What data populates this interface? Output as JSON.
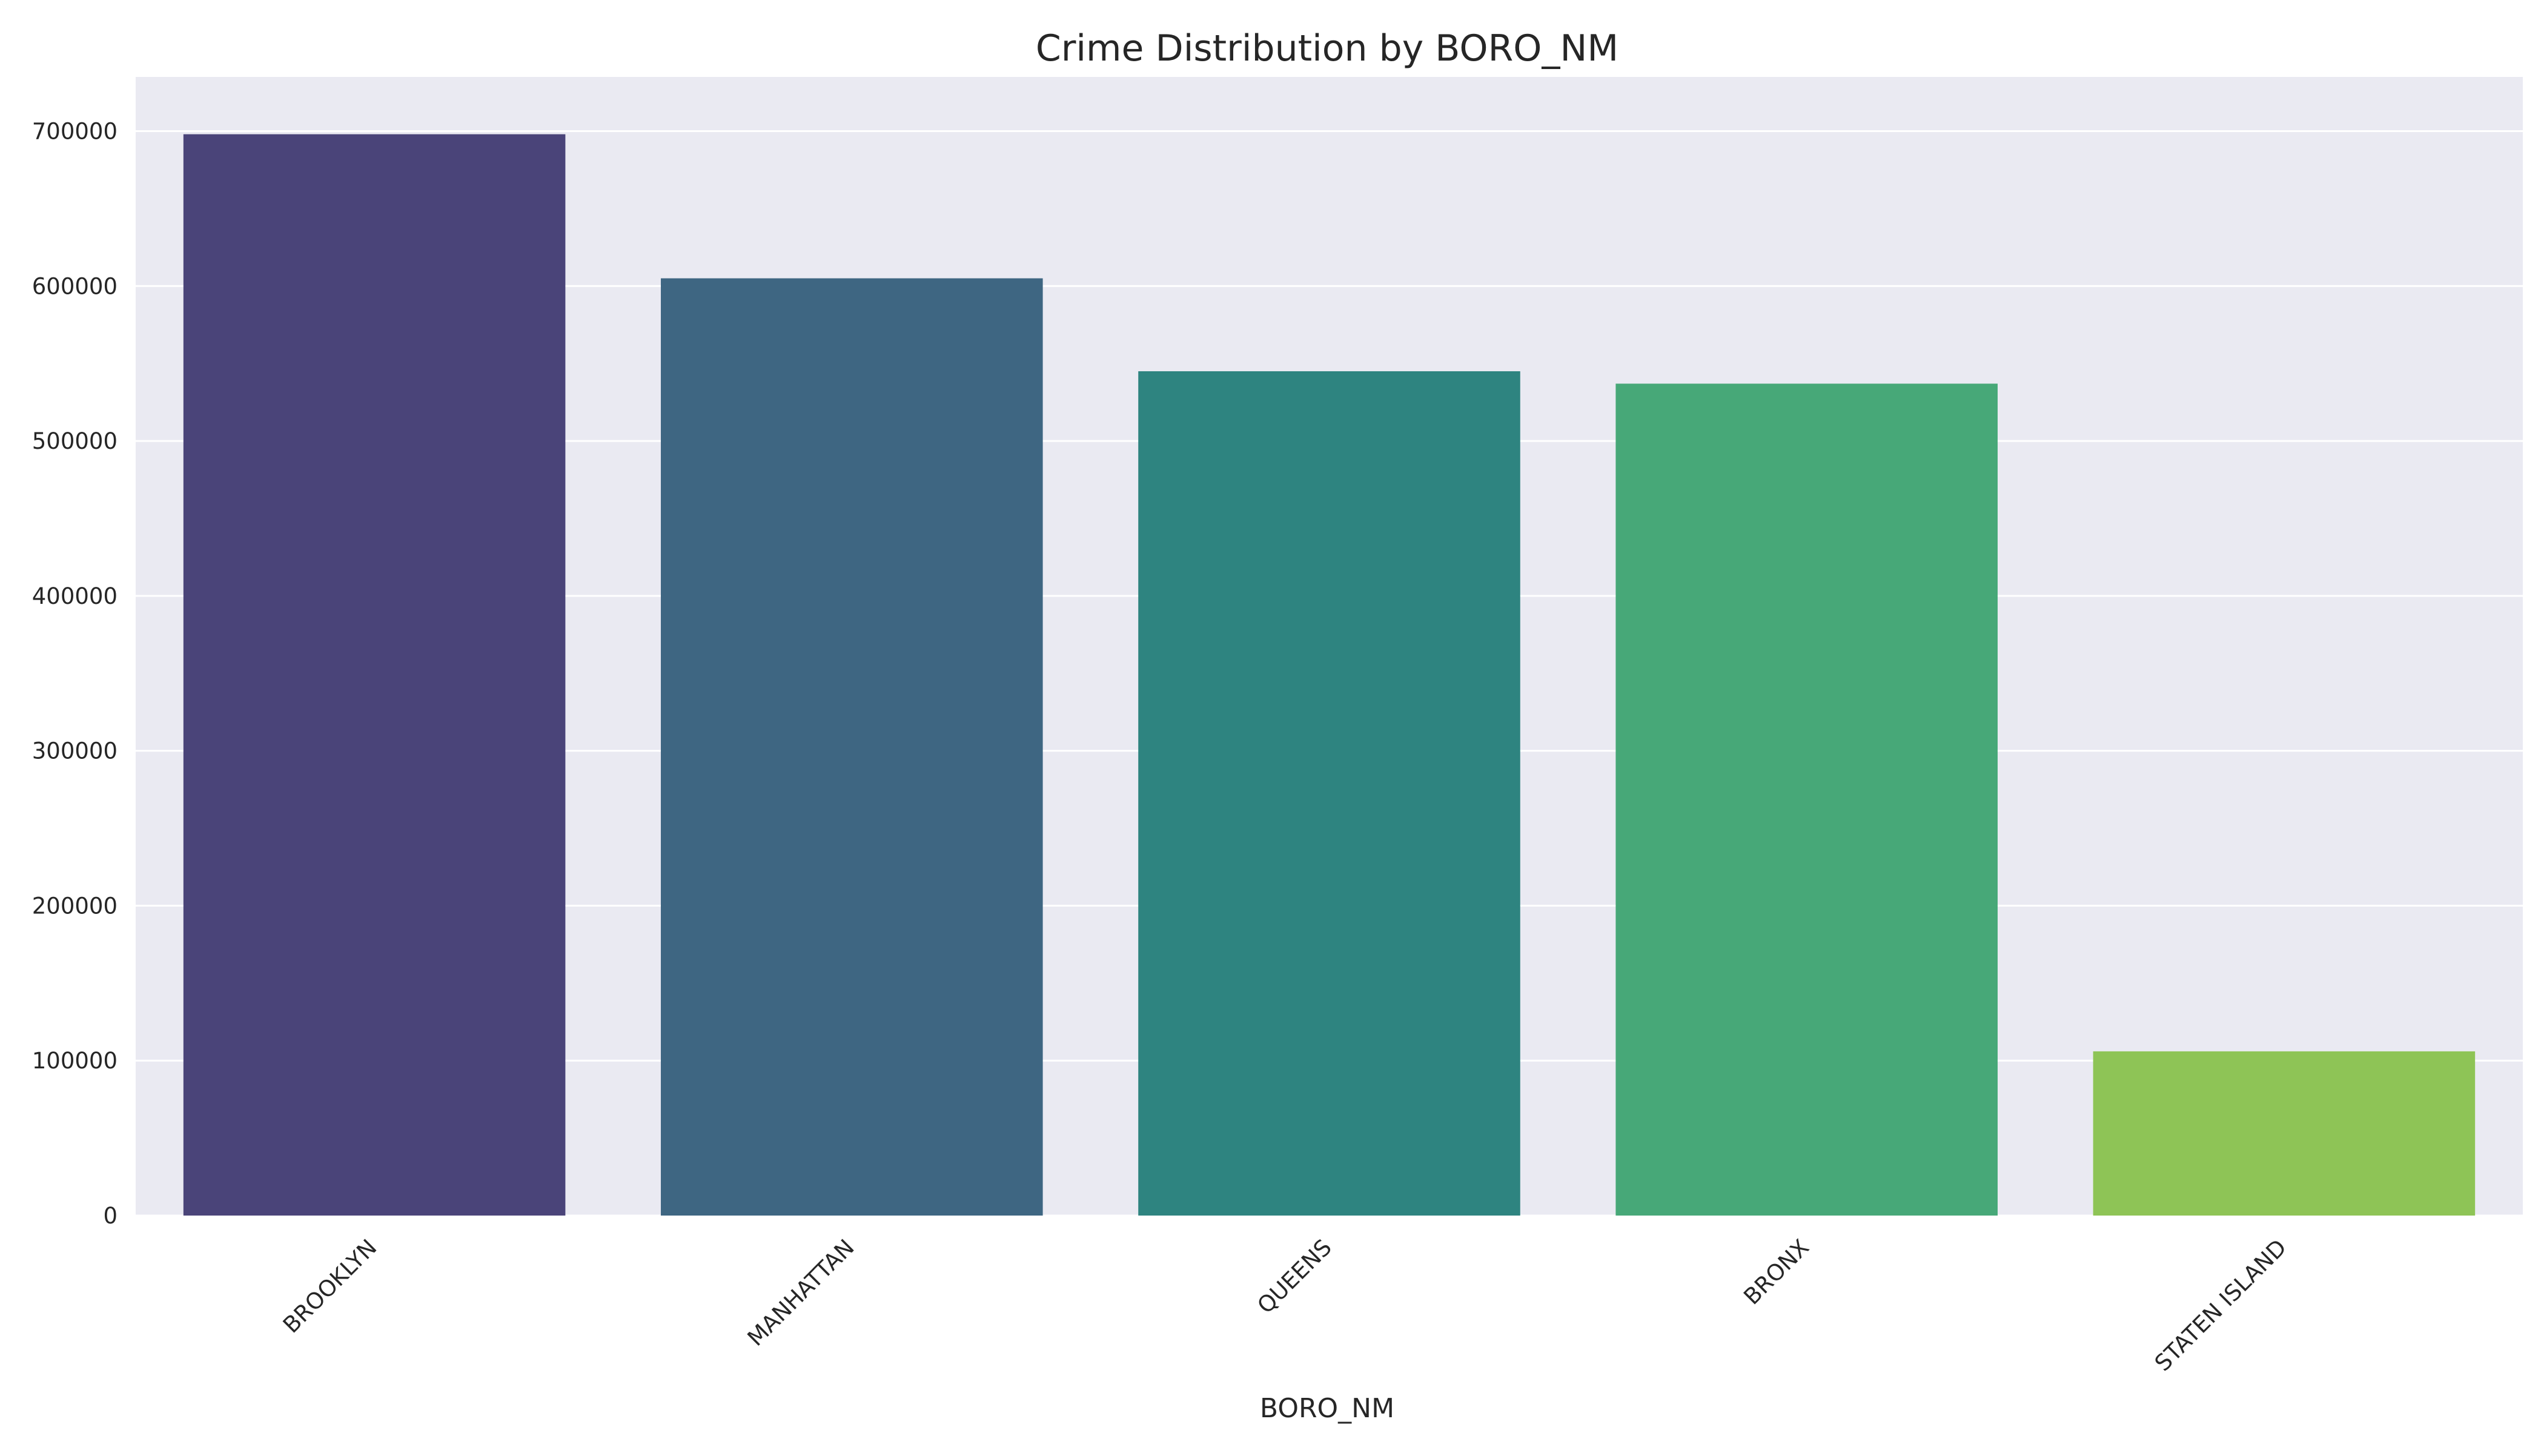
{
  "chart_data": {
    "type": "bar",
    "title": "Crime Distribution by BORO_NM",
    "xlabel": "BORO_NM",
    "ylabel": "",
    "categories": [
      "BROOKLYN",
      "MANHATTAN",
      "QUEENS",
      "BRONX",
      "STATEN ISLAND"
    ],
    "values": [
      698000,
      605000,
      545000,
      537000,
      106000
    ],
    "colors": [
      "#4a4479",
      "#3e6682",
      "#2e8480",
      "#47a878",
      "#8ec456"
    ],
    "ylim": [
      0,
      735000
    ],
    "yticks": [
      "0",
      "100000",
      "200000",
      "300000",
      "400000",
      "500000",
      "600000",
      "700000"
    ],
    "plot_background": "#eaeaf2",
    "grid": "horizontal"
  }
}
